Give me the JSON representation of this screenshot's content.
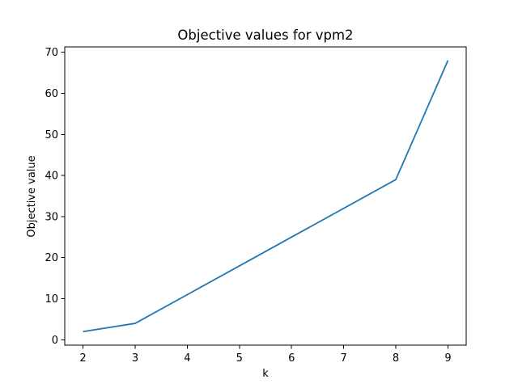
{
  "chart_data": {
    "type": "line",
    "title": "Objective values for vpm2",
    "xlabel": "k",
    "ylabel": "Objective value",
    "x": [
      2,
      3,
      4,
      5,
      6,
      7,
      8,
      9
    ],
    "series": [
      {
        "values": [
          2,
          4,
          11,
          18,
          25,
          32,
          39,
          68
        ],
        "color": "#1f77b4"
      }
    ],
    "xlim": [
      1.65,
      9.35
    ],
    "ylim": [
      -1.3,
      71.3
    ],
    "xticks": [
      2,
      3,
      4,
      5,
      6,
      7,
      8,
      9
    ],
    "yticks": [
      0,
      10,
      20,
      30,
      40,
      50,
      60,
      70
    ],
    "grid": false,
    "legend": "none"
  }
}
